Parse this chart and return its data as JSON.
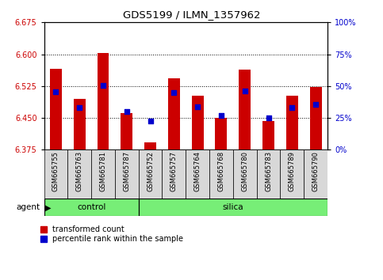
{
  "title": "GDS5199 / ILMN_1357962",
  "samples": [
    "GSM665755",
    "GSM665763",
    "GSM665781",
    "GSM665787",
    "GSM665752",
    "GSM665757",
    "GSM665764",
    "GSM665768",
    "GSM665780",
    "GSM665783",
    "GSM665789",
    "GSM665790"
  ],
  "groups": [
    "control",
    "control",
    "control",
    "control",
    "silica",
    "silica",
    "silica",
    "silica",
    "silica",
    "silica",
    "silica",
    "silica"
  ],
  "transformed_count": [
    6.565,
    6.495,
    6.603,
    6.462,
    6.393,
    6.543,
    6.503,
    6.45,
    6.563,
    6.442,
    6.503,
    6.523
  ],
  "percentile_rank": [
    6.512,
    6.474,
    6.527,
    6.466,
    6.443,
    6.51,
    6.477,
    6.455,
    6.514,
    6.45,
    6.475,
    6.481
  ],
  "y_min": 6.375,
  "y_max": 6.675,
  "y_ticks_left": [
    6.375,
    6.45,
    6.525,
    6.6,
    6.675
  ],
  "y_ticks_right_vals": [
    0,
    25,
    50,
    75,
    100
  ],
  "bar_color": "#cc0000",
  "dot_color": "#0000cc",
  "group_color": "#77ee77",
  "tick_label_color_left": "#cc0000",
  "tick_label_color_right": "#0000cc",
  "bar_width": 0.5,
  "dot_size": 18,
  "n_control": 4,
  "n_silica": 8
}
